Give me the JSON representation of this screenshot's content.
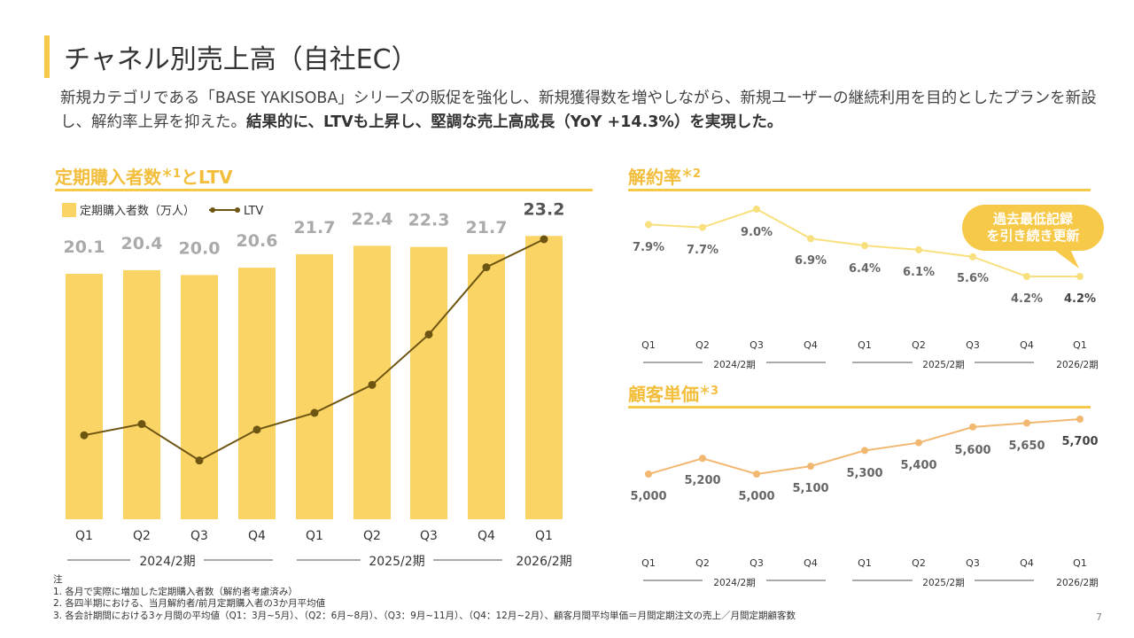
{
  "page_title": "チャネル別売上高（自社EC）",
  "intro": {
    "text_plain": "新規カテゴリである「BASE YAKISOBA」シリーズの販促を強化し、新規獲得数を増やしながら、新規ユーザーの継続利用を目的としたプランを新設し、解約率上昇を抑えた。",
    "text_bold": "結果的に、LTVも上昇し、堅調な売上高成長（YoY +14.3%）を実現した。"
  },
  "sections": {
    "left_title": "定期購入者数",
    "left_title_sup": "＊1",
    "left_title_suffix": "とLTV",
    "churn_title": "解約率",
    "churn_title_sup": "＊2",
    "price_title": "顧客単価",
    "price_title_sup": "＊3"
  },
  "callout": {
    "line1": "過去最低記録",
    "line2": "を引き続き更新"
  },
  "chart_data": [
    {
      "type": "bar",
      "title": "定期購入者数＊1とLTV",
      "categories": [
        "Q1",
        "Q2",
        "Q3",
        "Q4",
        "Q1",
        "Q2",
        "Q3",
        "Q4",
        "Q1"
      ],
      "periods": [
        "2024/2期",
        "2025/2期",
        "2026/2期"
      ],
      "series": [
        {
          "name": "定期購入者数（万人）",
          "values": [
            20.1,
            20.4,
            20.0,
            20.6,
            21.7,
            22.4,
            22.3,
            21.7,
            23.2
          ]
        },
        {
          "name": "LTV",
          "type": "line",
          "values": [
            0.3,
            0.34,
            0.21,
            0.32,
            0.38,
            0.48,
            0.66,
            0.9,
            1.0
          ]
        }
      ],
      "ylim": [
        0,
        23.8
      ],
      "legend": "top-left",
      "colors": {
        "bar": "#FAD566",
        "line": "#6E5512",
        "label": "#AAAAAA",
        "label_last": "#555555"
      }
    },
    {
      "type": "line",
      "title": "解約率＊2",
      "categories": [
        "Q1",
        "Q2",
        "Q3",
        "Q4",
        "Q1",
        "Q2",
        "Q3",
        "Q4",
        "Q1"
      ],
      "periods": [
        "2024/2期",
        "2025/2期",
        "2026/2期"
      ],
      "values": [
        7.9,
        7.7,
        9.0,
        6.9,
        6.4,
        6.1,
        5.6,
        4.2,
        4.2
      ],
      "labels": [
        "7.9%",
        "7.7%",
        "9.0%",
        "6.9%",
        "6.4%",
        "6.1%",
        "5.6%",
        "4.2%",
        "4.2%"
      ],
      "ylim": [
        4.2,
        9.0
      ],
      "colors": {
        "line": "#F9E07F",
        "label": "#666666"
      }
    },
    {
      "type": "line",
      "title": "顧客単価＊3",
      "categories": [
        "Q1",
        "Q2",
        "Q3",
        "Q4",
        "Q1",
        "Q2",
        "Q3",
        "Q4",
        "Q1"
      ],
      "periods": [
        "2024/2期",
        "2025/2期",
        "2026/2期"
      ],
      "values": [
        5000,
        5200,
        5000,
        5100,
        5300,
        5400,
        5600,
        5650,
        5700
      ],
      "labels": [
        "5,000",
        "5,200",
        "5,000",
        "5,100",
        "5,300",
        "5,400",
        "5,600",
        "5,650",
        "5,700"
      ],
      "ylim": [
        5000,
        5700
      ],
      "colors": {
        "line": "#F2B872",
        "label": "#666666"
      }
    }
  ],
  "notes": {
    "heading": "注",
    "items": [
      "1. 各月で実際に増加した定期購入者数（解約者考慮済み）",
      "2. 各四半期における、当月解約者/前月定期購入者の3か月平均値",
      "3. 各会計期間における3ヶ月間の平均値（Q1：3月~5月）、（Q2：6月~8月）、（Q3：9月~11月）、（Q4：12月~2月）、顧客月間平均単価＝月間定期注文の売上／月間定期顧客数"
    ]
  },
  "page_number": "7"
}
